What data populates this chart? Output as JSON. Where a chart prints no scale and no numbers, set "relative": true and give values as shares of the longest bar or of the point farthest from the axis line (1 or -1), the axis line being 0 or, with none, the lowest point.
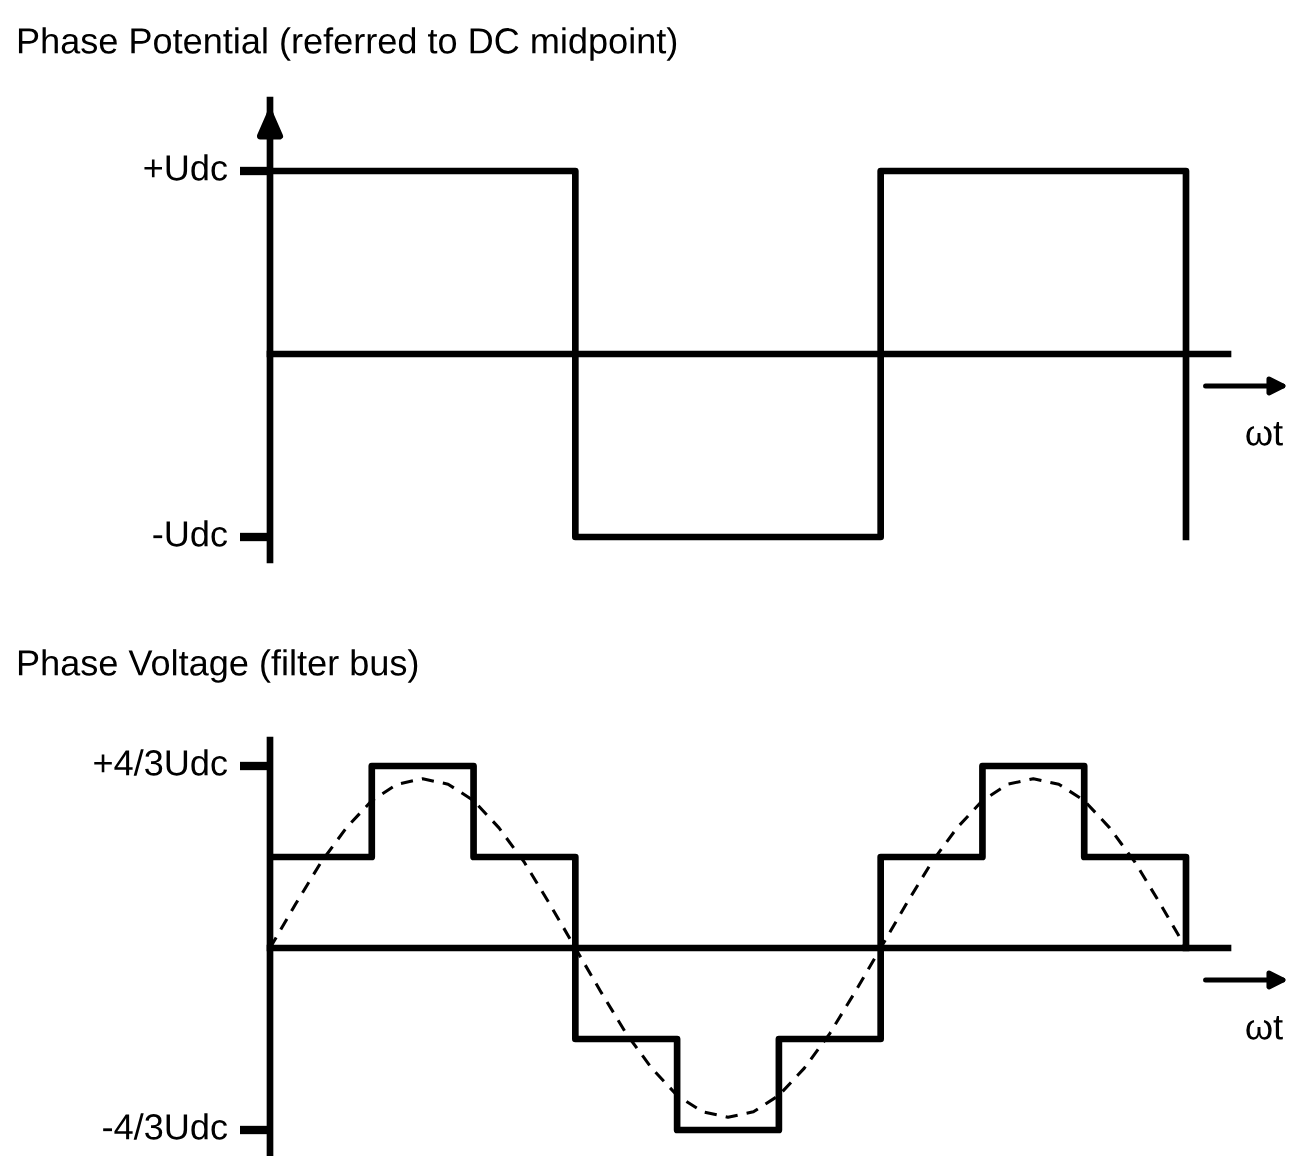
{
  "chart_data": [
    {
      "type": "step",
      "title": "Phase Potential (referred to DC midpoint)",
      "xlabel": "ωt",
      "relative": true,
      "categories": [
        null,
        null,
        null,
        null,
        null,
        null,
        null,
        null,
        null,
        null
      ],
      "series": [
        {
          "color": "#000000",
          "values": [
            1,
            1,
            1,
            -1,
            -1,
            -1,
            1,
            1,
            1,
            -1
          ]
        }
      ],
      "annotations": [
        "+Udc",
        "-Udc"
      ]
    },
    {
      "type": "step",
      "title": "Phase Voltage (filter bus)",
      "xlabel": "ωt",
      "relative": true,
      "categories": [
        null,
        null,
        null,
        null,
        null,
        null,
        null,
        null,
        null,
        null,
        null,
        null,
        null,
        null,
        null,
        null,
        null,
        null,
        null,
        null,
        null,
        null,
        null,
        null,
        null,
        null,
        null,
        null,
        null,
        null,
        null,
        null,
        null,
        null,
        null,
        null,
        null
      ],
      "series": [
        {
          "color": "#000000",
          "values": [
            0.5,
            0.5,
            0.5,
            0.5,
            1,
            1,
            1,
            1,
            0.5,
            0.5,
            0.5,
            0.5,
            -0.5,
            -0.5,
            -0.5,
            -0.5,
            -1,
            -1,
            -1,
            -1,
            -0.5,
            -0.5,
            -0.5,
            -0.5,
            0.5,
            0.5,
            0.5,
            0.5,
            1,
            1,
            1,
            1,
            0.5,
            0.5,
            0.5,
            0.5,
            0
          ]
        },
        {
          "type": "line",
          "color": "#000000",
          "line_style": "dashed",
          "values": [
            0,
            0.24,
            0.47,
            0.66,
            0.81,
            0.9,
            0.93,
            0.9,
            0.81,
            0.66,
            0.47,
            0.24,
            0,
            -0.24,
            -0.47,
            -0.66,
            -0.81,
            -0.9,
            -0.93,
            -0.9,
            -0.81,
            -0.66,
            -0.47,
            -0.24,
            0,
            0.24,
            0.47,
            0.66,
            0.81,
            0.9,
            0.93,
            0.9,
            0.81,
            0.66,
            0.47,
            0.24,
            0
          ]
        }
      ],
      "annotations": [
        "+4/3Udc",
        "-4/3Udc"
      ]
    }
  ]
}
